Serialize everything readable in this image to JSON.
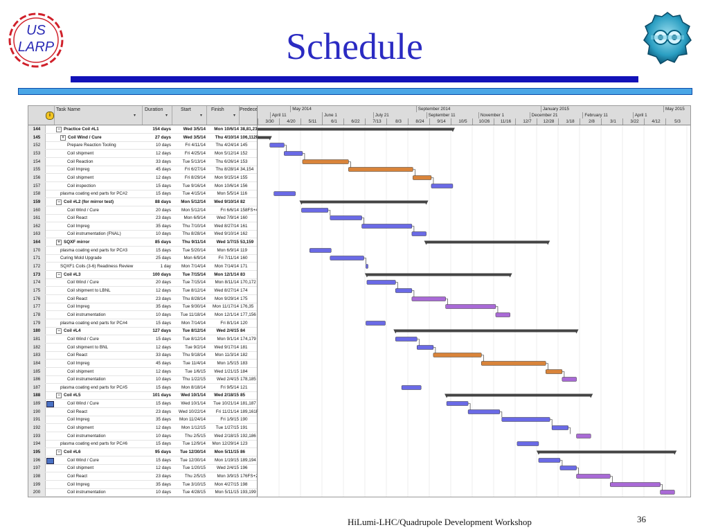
{
  "title": "Schedule",
  "logo_left": {
    "icon": "us-larp-logo",
    "line1": "US",
    "line2": "LARP",
    "color": "#2b2bb5",
    "accent": "#d0202a"
  },
  "logo_right": {
    "icon": "hilumi-logo"
  },
  "footer": "HiLumi-LHC/Quadrupole Development Workshop",
  "page_number": "36",
  "gantt": {
    "columns": {
      "info": "i",
      "task_name": "Task Name",
      "duration": "Duration",
      "start": "Start",
      "finish": "Finish",
      "predecessors": "Predeces"
    },
    "timescale_top": [
      "May 2014",
      "September 2014",
      "January 2015",
      "May 2015"
    ],
    "timescale_middle": [
      "April 11",
      "June 1",
      "July 21",
      "September 11",
      "November 1",
      "December 21",
      "February 11",
      "April 1"
    ],
    "timescale_bottom": [
      "3/30",
      "4/20",
      "5/11",
      "6/1",
      "6/22",
      "7/13",
      "8/3",
      "8/24",
      "9/14",
      "10/5",
      "10/26",
      "11/16",
      "12/7",
      "12/28",
      "1/18",
      "2/8",
      "3/1",
      "3/22",
      "4/12",
      "5/3"
    ],
    "colors": {
      "summary": "#444444",
      "blue": "#6a6ae6",
      "orange": "#d9843a",
      "purple": "#a96ad6",
      "link": "#222222"
    },
    "rows": [
      {
        "id": "144",
        "indicator": "",
        "name": "Practice Coil #L1",
        "toggle": "−",
        "level": 0,
        "summary": true,
        "duration": "154 days",
        "start": "Wed 3/5/14",
        "finish": "Mon 10/6/14",
        "pred": "38,81,23",
        "bar": {
          "start": "2014-03-05",
          "end": "2014-10-06",
          "type": "summary"
        }
      },
      {
        "id": "145",
        "indicator": "",
        "name": "Coil Wind / Cure",
        "toggle": "+",
        "level": 1,
        "summary": true,
        "duration": "27 days",
        "start": "Wed 3/5/14",
        "finish": "Thu 4/10/14",
        "pred": "106,112F",
        "bar": {
          "start": "2014-03-05",
          "end": "2014-04-10",
          "type": "summary"
        }
      },
      {
        "id": "152",
        "indicator": "",
        "name": "Prepare Reaction Tooling",
        "level": 2,
        "duration": "10 days",
        "start": "Fri 4/11/14",
        "finish": "Thu 4/24/14",
        "pred": "145",
        "bar": {
          "start": "2014-04-11",
          "end": "2014-04-24",
          "type": "blue"
        }
      },
      {
        "id": "153",
        "indicator": "",
        "name": "Coil shipment",
        "level": 2,
        "duration": "12 days",
        "start": "Fri 4/25/14",
        "finish": "Mon 5/12/14",
        "pred": "152",
        "bar": {
          "start": "2014-04-25",
          "end": "2014-05-12",
          "type": "blue"
        }
      },
      {
        "id": "154",
        "indicator": "",
        "name": "Coil Reaction",
        "level": 2,
        "duration": "33 days",
        "start": "Tue 5/13/14",
        "finish": "Thu 6/26/14",
        "pred": "153",
        "bar": {
          "start": "2014-05-13",
          "end": "2014-06-26",
          "type": "orange"
        }
      },
      {
        "id": "155",
        "indicator": "",
        "name": "Coil Impreg",
        "level": 2,
        "duration": "45 days",
        "start": "Fri 6/27/14",
        "finish": "Thu 8/28/14",
        "pred": "34,154",
        "bar": {
          "start": "2014-06-27",
          "end": "2014-08-28",
          "type": "orange"
        }
      },
      {
        "id": "156",
        "indicator": "",
        "name": "Coil shipment",
        "level": 2,
        "duration": "12 days",
        "start": "Fri 8/29/14",
        "finish": "Mon 9/15/14",
        "pred": "155",
        "bar": {
          "start": "2014-08-29",
          "end": "2014-09-15",
          "type": "orange"
        }
      },
      {
        "id": "157",
        "indicator": "",
        "name": "Coil inspection",
        "level": 2,
        "duration": "15 days",
        "start": "Tue 9/16/14",
        "finish": "Mon 10/6/14",
        "pred": "156",
        "bar": {
          "start": "2014-09-16",
          "end": "2014-10-06",
          "type": "blue"
        }
      },
      {
        "id": "158",
        "indicator": "",
        "name": "plasma coating end parts for PC#2",
        "level": 1,
        "duration": "15 days",
        "start": "Tue 4/15/14",
        "finish": "Mon 5/5/14",
        "pred": "116",
        "bar": {
          "start": "2014-04-15",
          "end": "2014-05-05",
          "type": "blue"
        }
      },
      {
        "id": "159",
        "indicator": "",
        "name": "Coil #L2 (for mirror test)",
        "toggle": "−",
        "level": 0,
        "summary": true,
        "duration": "88 days",
        "start": "Mon 5/12/14",
        "finish": "Wed 9/10/14",
        "pred": "82",
        "bar": {
          "start": "2014-05-12",
          "end": "2014-09-10",
          "type": "summary"
        }
      },
      {
        "id": "160",
        "indicator": "",
        "name": "Coil Wind / Cure",
        "level": 2,
        "duration": "20 days",
        "start": "Mon 5/12/14",
        "finish": "Fri 6/6/14",
        "pred": "158FS+4",
        "bar": {
          "start": "2014-05-12",
          "end": "2014-06-06",
          "type": "blue"
        }
      },
      {
        "id": "161",
        "indicator": "",
        "name": "Coil React",
        "level": 2,
        "duration": "23 days",
        "start": "Mon 6/9/14",
        "finish": "Wed 7/9/14",
        "pred": "160",
        "bar": {
          "start": "2014-06-09",
          "end": "2014-07-09",
          "type": "blue"
        }
      },
      {
        "id": "162",
        "indicator": "",
        "name": "Coil Impreg",
        "level": 2,
        "duration": "35 days",
        "start": "Thu 7/10/14",
        "finish": "Wed 8/27/14",
        "pred": "161",
        "bar": {
          "start": "2014-07-10",
          "end": "2014-08-27",
          "type": "blue"
        }
      },
      {
        "id": "163",
        "indicator": "",
        "name": "Coil instrumentation (FNAL)",
        "level": 2,
        "duration": "10 days",
        "start": "Thu 8/28/14",
        "finish": "Wed 9/10/14",
        "pred": "162",
        "bar": {
          "start": "2014-08-28",
          "end": "2014-09-10",
          "type": "blue"
        }
      },
      {
        "id": "164",
        "indicator": "",
        "name": "SQXF mirror",
        "toggle": "+",
        "level": 0,
        "summary": true,
        "duration": "85 days",
        "start": "Thu 9/11/14",
        "finish": "Wed 1/7/15",
        "pred": "53,159",
        "bar": {
          "start": "2014-09-11",
          "end": "2015-01-07",
          "type": "summary"
        }
      },
      {
        "id": "170",
        "indicator": "",
        "name": "plasma coating end parts for PC#3",
        "level": 1,
        "duration": "15 days",
        "start": "Tue 5/20/14",
        "finish": "Mon 6/9/14",
        "pred": "119",
        "bar": {
          "start": "2014-05-20",
          "end": "2014-06-09",
          "type": "blue"
        }
      },
      {
        "id": "171",
        "indicator": "",
        "name": "Curing Mold Upgrade",
        "level": 1,
        "duration": "25 days",
        "start": "Mon 6/9/14",
        "finish": "Fri 7/11/14",
        "pred": "160",
        "bar": {
          "start": "2014-06-09",
          "end": "2014-07-11",
          "type": "blue"
        }
      },
      {
        "id": "172",
        "indicator": "",
        "name": "SQXF1 Coils (3-6) Readiness Review",
        "level": 1,
        "duration": "1 day",
        "start": "Mon 7/14/14",
        "finish": "Mon 7/14/14",
        "pred": "171",
        "bar": {
          "start": "2014-07-14",
          "end": "2014-07-14",
          "type": "blue"
        }
      },
      {
        "id": "173",
        "indicator": "",
        "name": "Coil #L3",
        "toggle": "−",
        "level": 0,
        "summary": true,
        "duration": "100 days",
        "start": "Tue 7/15/14",
        "finish": "Mon 12/1/14",
        "pred": "83",
        "bar": {
          "start": "2014-07-15",
          "end": "2014-12-01",
          "type": "summary"
        }
      },
      {
        "id": "174",
        "indicator": "",
        "name": "Coil Wind / Cure",
        "level": 2,
        "duration": "20 days",
        "start": "Tue 7/15/14",
        "finish": "Mon 8/11/14",
        "pred": "170,172",
        "bar": {
          "start": "2014-07-15",
          "end": "2014-08-11",
          "type": "blue"
        }
      },
      {
        "id": "175",
        "indicator": "",
        "name": "Coil shipment to LBNL",
        "level": 2,
        "duration": "12 days",
        "start": "Tue 8/12/14",
        "finish": "Wed 8/27/14",
        "pred": "174",
        "bar": {
          "start": "2014-08-12",
          "end": "2014-08-27",
          "type": "blue"
        }
      },
      {
        "id": "176",
        "indicator": "",
        "name": "Coil React",
        "level": 2,
        "duration": "23 days",
        "start": "Thu 8/28/14",
        "finish": "Mon 9/29/14",
        "pred": "175",
        "bar": {
          "start": "2014-08-28",
          "end": "2014-09-29",
          "type": "purple"
        }
      },
      {
        "id": "177",
        "indicator": "",
        "name": "Coil Impreg",
        "level": 2,
        "duration": "35 days",
        "start": "Tue 9/30/14",
        "finish": "Mon 11/17/14",
        "pred": "176,35",
        "bar": {
          "start": "2014-09-30",
          "end": "2014-11-17",
          "type": "purple"
        }
      },
      {
        "id": "178",
        "indicator": "",
        "name": "Coil instrumentation",
        "level": 2,
        "duration": "10 days",
        "start": "Tue 11/18/14",
        "finish": "Mon 12/1/14",
        "pred": "177,156",
        "bar": {
          "start": "2014-11-18",
          "end": "2014-12-01",
          "type": "purple"
        }
      },
      {
        "id": "179",
        "indicator": "",
        "name": "plasma coating end parts for PC#4",
        "level": 1,
        "duration": "15 days",
        "start": "Mon 7/14/14",
        "finish": "Fri 8/1/14",
        "pred": "120",
        "bar": {
          "start": "2014-07-14",
          "end": "2014-08-01",
          "type": "blue"
        }
      },
      {
        "id": "180",
        "indicator": "",
        "name": "Coil #L4",
        "toggle": "−",
        "level": 0,
        "summary": true,
        "duration": "127 days",
        "start": "Tue 8/12/14",
        "finish": "Wed 2/4/15",
        "pred": "84",
        "bar": {
          "start": "2014-08-12",
          "end": "2015-02-04",
          "type": "summary"
        }
      },
      {
        "id": "181",
        "indicator": "",
        "name": "Coil Wind / Cure",
        "level": 2,
        "duration": "15 days",
        "start": "Tue 8/12/14",
        "finish": "Mon 9/1/14",
        "pred": "174,179",
        "bar": {
          "start": "2014-08-12",
          "end": "2014-09-01",
          "type": "blue"
        }
      },
      {
        "id": "182",
        "indicator": "",
        "name": "Coil shipment to BNL",
        "level": 2,
        "duration": "12 days",
        "start": "Tue 9/2/14",
        "finish": "Wed 9/17/14",
        "pred": "181",
        "bar": {
          "start": "2014-09-02",
          "end": "2014-09-17",
          "type": "blue"
        }
      },
      {
        "id": "183",
        "indicator": "",
        "name": "Coil React",
        "level": 2,
        "duration": "33 days",
        "start": "Thu 9/18/14",
        "finish": "Mon 11/3/14",
        "pred": "182",
        "bar": {
          "start": "2014-09-18",
          "end": "2014-11-03",
          "type": "orange"
        }
      },
      {
        "id": "184",
        "indicator": "",
        "name": "Coil Impreg",
        "level": 2,
        "duration": "45 days",
        "start": "Tue 11/4/14",
        "finish": "Mon 1/5/15",
        "pred": "183",
        "bar": {
          "start": "2014-11-04",
          "end": "2015-01-05",
          "type": "orange"
        }
      },
      {
        "id": "185",
        "indicator": "",
        "name": "Coil shipment",
        "level": 2,
        "duration": "12 days",
        "start": "Tue 1/6/15",
        "finish": "Wed 1/21/15",
        "pred": "184",
        "bar": {
          "start": "2015-01-06",
          "end": "2015-01-21",
          "type": "orange"
        }
      },
      {
        "id": "186",
        "indicator": "",
        "name": "Coil instrumentation",
        "level": 2,
        "duration": "10 days",
        "start": "Thu 1/22/15",
        "finish": "Wed 2/4/15",
        "pred": "178,185",
        "bar": {
          "start": "2015-01-22",
          "end": "2015-02-04",
          "type": "purple"
        }
      },
      {
        "id": "187",
        "indicator": "",
        "name": "plasma coating end parts for PC#5",
        "level": 1,
        "duration": "15 days",
        "start": "Mon 8/18/14",
        "finish": "Fri 9/5/14",
        "pred": "121",
        "bar": {
          "start": "2014-08-18",
          "end": "2014-09-05",
          "type": "blue"
        }
      },
      {
        "id": "188",
        "indicator": "",
        "name": "Coil #L5",
        "toggle": "−",
        "level": 0,
        "summary": true,
        "duration": "101 days",
        "start": "Wed 10/1/14",
        "finish": "Wed 2/18/15",
        "pred": "85",
        "bar": {
          "start": "2014-10-01",
          "end": "2015-02-18",
          "type": "summary"
        }
      },
      {
        "id": "189",
        "indicator": "cal",
        "name": "Coil Wind / Cure",
        "level": 2,
        "duration": "15 days",
        "start": "Wed 10/1/14",
        "finish": "Tue 10/21/14",
        "pred": "181,187",
        "bar": {
          "start": "2014-10-01",
          "end": "2014-10-21",
          "type": "blue"
        }
      },
      {
        "id": "190",
        "indicator": "",
        "name": "Coil React",
        "level": 2,
        "duration": "23 days",
        "start": "Wed 10/22/14",
        "finish": "Fri 11/21/14",
        "pred": "189,161F",
        "bar": {
          "start": "2014-10-22",
          "end": "2014-11-21",
          "type": "blue"
        }
      },
      {
        "id": "191",
        "indicator": "",
        "name": "Coil Impreg",
        "level": 2,
        "duration": "35 days",
        "start": "Mon 11/24/14",
        "finish": "Fri 1/9/15",
        "pred": "190",
        "bar": {
          "start": "2014-11-24",
          "end": "2015-01-09",
          "type": "blue"
        }
      },
      {
        "id": "192",
        "indicator": "",
        "name": "Coil shipment",
        "level": 2,
        "duration": "12 days",
        "start": "Mon 1/12/15",
        "finish": "Tue 1/27/15",
        "pred": "191",
        "bar": {
          "start": "2015-01-12",
          "end": "2015-01-27",
          "type": "blue"
        }
      },
      {
        "id": "193",
        "indicator": "",
        "name": "Coil instrumentation",
        "level": 2,
        "duration": "10 days",
        "start": "Thu 2/5/15",
        "finish": "Wed 2/18/15",
        "pred": "192,186",
        "bar": {
          "start": "2015-02-05",
          "end": "2015-02-18",
          "type": "purple"
        }
      },
      {
        "id": "194",
        "indicator": "",
        "name": "plasma coating end parts for PC#6",
        "level": 1,
        "duration": "15 days",
        "start": "Tue 12/9/14",
        "finish": "Mon 12/29/14",
        "pred": "123",
        "bar": {
          "start": "2014-12-09",
          "end": "2014-12-29",
          "type": "blue"
        }
      },
      {
        "id": "195",
        "indicator": "",
        "name": "Coil #L6",
        "toggle": "−",
        "level": 0,
        "summary": true,
        "duration": "95 days",
        "start": "Tue 12/30/14",
        "finish": "Mon 5/11/15",
        "pred": "86",
        "bar": {
          "start": "2014-12-30",
          "end": "2015-05-11",
          "type": "summary"
        }
      },
      {
        "id": "196",
        "indicator": "cal",
        "name": "Coil Wind / Cure",
        "level": 2,
        "duration": "15 days",
        "start": "Tue 12/30/14",
        "finish": "Mon 1/19/15",
        "pred": "189,194",
        "bar": {
          "start": "2014-12-30",
          "end": "2015-01-19",
          "type": "blue"
        }
      },
      {
        "id": "197",
        "indicator": "",
        "name": "Coil shipment",
        "level": 2,
        "duration": "12 days",
        "start": "Tue 1/20/15",
        "finish": "Wed 2/4/15",
        "pred": "196",
        "bar": {
          "start": "2015-01-20",
          "end": "2015-02-04",
          "type": "blue"
        }
      },
      {
        "id": "198",
        "indicator": "",
        "name": "Coil React",
        "level": 2,
        "duration": "23 days",
        "start": "Thu 2/5/15",
        "finish": "Mon 3/9/15",
        "pred": "176FS+2",
        "bar": {
          "start": "2015-02-05",
          "end": "2015-03-09",
          "type": "purple"
        }
      },
      {
        "id": "199",
        "indicator": "",
        "name": "Coil Impreg",
        "level": 2,
        "duration": "35 days",
        "start": "Tue 3/10/15",
        "finish": "Mon 4/27/15",
        "pred": "198",
        "bar": {
          "start": "2015-03-10",
          "end": "2015-04-27",
          "type": "purple"
        }
      },
      {
        "id": "200",
        "indicator": "",
        "name": "Coil instrumentation",
        "level": 2,
        "duration": "10 days",
        "start": "Tue 4/28/15",
        "finish": "Mon 5/11/15",
        "pred": "193,199",
        "bar": {
          "start": "2015-04-28",
          "end": "2015-05-11",
          "type": "purple"
        }
      }
    ]
  }
}
